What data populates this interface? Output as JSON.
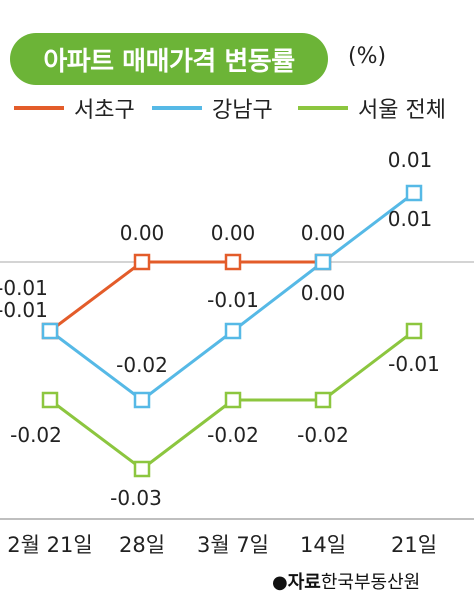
{
  "chart_data": {
    "type": "line",
    "title": "아파트 매매가격 변동률",
    "unit": "(%)",
    "categories": [
      "2월 21일",
      "28일",
      "3월 7일",
      "14일",
      "21일"
    ],
    "ylim": [
      -0.035,
      0.015
    ],
    "grid": false,
    "legend_position": "top",
    "series": [
      {
        "name": "서초구",
        "color": "#e35c2a",
        "values": [
          -0.01,
          0.0,
          0.0,
          0.0,
          null
        ],
        "labels": [
          "-0.01",
          "0.00",
          "0.00",
          "0.00",
          null
        ]
      },
      {
        "name": "강남구",
        "color": "#56b9e6",
        "values": [
          -0.01,
          -0.02,
          -0.01,
          0.0,
          0.01
        ],
        "labels": [
          "-0.01",
          "-0.02",
          "-0.01",
          "0.00",
          "0.01"
        ]
      },
      {
        "name": "서울 전체",
        "color": "#8cc63f",
        "values": [
          -0.02,
          -0.03,
          -0.02,
          -0.02,
          -0.01
        ],
        "labels": [
          "-0.02",
          "-0.03",
          "-0.02",
          "-0.02",
          "-0.01"
        ]
      }
    ],
    "extra_labels": [
      "0.01"
    ]
  },
  "source": {
    "prefix": "●자료",
    "text": "한국부동산원"
  }
}
